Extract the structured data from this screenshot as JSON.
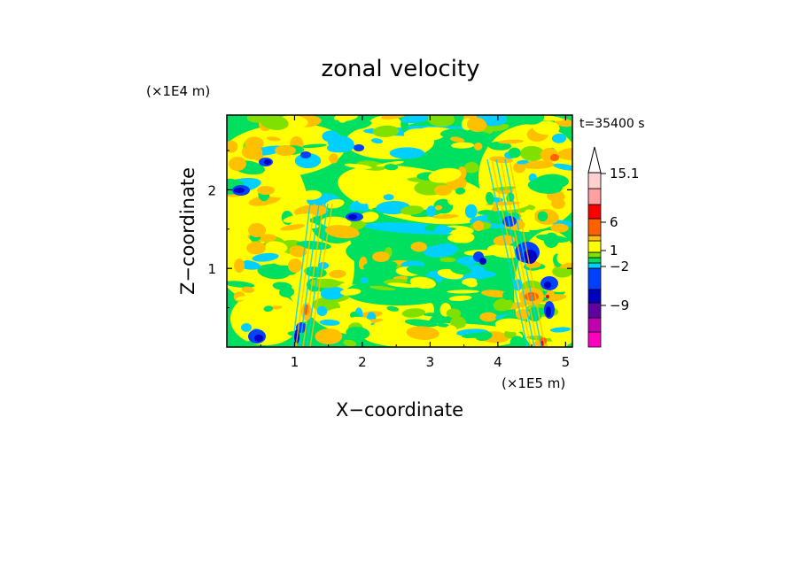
{
  "chart_data": {
    "type": "heatmap",
    "title": "zonal velocity",
    "xlabel": "X−coordinate",
    "ylabel": "Z−coordinate",
    "x_unit": "(×1E5 m)",
    "y_unit": "(×1E4 m)",
    "time_label": "t=35400 s",
    "xlim": [
      0,
      5.1
    ],
    "ylim": [
      0,
      2.95
    ],
    "x_ticks": [
      {
        "value": 1,
        "label": "1"
      },
      {
        "value": 2,
        "label": "2"
      },
      {
        "value": 3,
        "label": "3"
      },
      {
        "value": 4,
        "label": "4"
      },
      {
        "value": 5,
        "label": "5"
      }
    ],
    "y_ticks": [
      {
        "value": 1,
        "label": "1"
      },
      {
        "value": 2,
        "label": "2"
      }
    ],
    "colorbar": {
      "colors_bottom_to_top": [
        "#ff00c0",
        "#c000b0",
        "#6000a0",
        "#0000c0",
        "#0040ff",
        "#00d0ff",
        "#00e060",
        "#80e000",
        "#ffff00",
        "#ffc000",
        "#ff6000",
        "#ff0000",
        "#ffa0a0",
        "#ffd0d0"
      ],
      "labels": [
        {
          "value": -9,
          "label": "−9"
        },
        {
          "value": -2,
          "label": "−2"
        },
        {
          "value": 1,
          "label": "1"
        },
        {
          "value": 6,
          "label": "6"
        },
        {
          "value": 15.1,
          "label": "15.1"
        }
      ],
      "extend_max_arrow": true
    }
  },
  "colors": {
    "background": "#ffffff",
    "field_base": "#00e060"
  }
}
